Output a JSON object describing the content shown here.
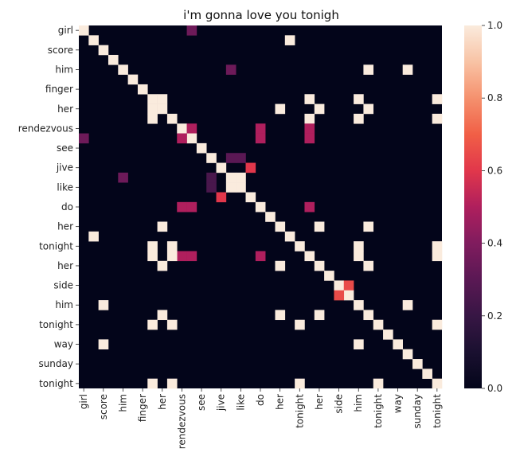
{
  "chart_data": {
    "type": "heatmap",
    "title": "i'm gonna love you tonigh",
    "tokens": [
      "girl",
      "",
      "score",
      "",
      "him",
      "",
      "finger",
      "",
      "her",
      "",
      "rendezvous",
      "",
      "see",
      "",
      "jive",
      "",
      "like",
      "",
      "do",
      "",
      "her",
      "",
      "tonight",
      "",
      "her",
      "",
      "side",
      "",
      "him",
      "",
      "tonight",
      "",
      "way",
      "",
      "sunday",
      "",
      "tonight"
    ],
    "x_tick_labels": [
      "girl",
      "score",
      "him",
      "finger",
      "her",
      "rendezvous",
      "see",
      "jive",
      "like",
      "do",
      "her",
      "tonight",
      "her",
      "side",
      "him",
      "tonight",
      "way",
      "sunday",
      "tonight"
    ],
    "y_tick_labels": [
      "girl",
      "score",
      "him",
      "finger",
      "her",
      "rendezvous",
      "see",
      "jive",
      "like",
      "do",
      "her",
      "tonight",
      "her",
      "side",
      "him",
      "tonight",
      "way",
      "sunday",
      "tonight"
    ],
    "colorbar": {
      "min": 0.0,
      "max": 1.0,
      "ticks": [
        "0.0",
        "0.2",
        "0.4",
        "0.6",
        "0.8",
        "1.0"
      ],
      "colormap": "rocket"
    },
    "cells": [
      [
        0,
        0,
        1.0
      ],
      [
        0,
        11,
        0.35
      ],
      [
        1,
        1,
        1.0
      ],
      [
        1,
        21,
        1.0
      ],
      [
        2,
        2,
        1.0
      ],
      [
        3,
        3,
        1.0
      ],
      [
        4,
        4,
        1.0
      ],
      [
        4,
        29,
        1.0
      ],
      [
        4,
        15,
        0.35
      ],
      [
        4,
        33,
        1.0
      ],
      [
        5,
        5,
        1.0
      ],
      [
        6,
        6,
        1.0
      ],
      [
        7,
        7,
        1.0
      ],
      [
        7,
        8,
        1.0
      ],
      [
        7,
        23,
        1.0
      ],
      [
        7,
        28,
        1.0
      ],
      [
        7,
        36,
        1.0
      ],
      [
        8,
        8,
        1.0
      ],
      [
        8,
        7,
        1.0
      ],
      [
        8,
        20,
        1.0
      ],
      [
        8,
        24,
        1.0
      ],
      [
        8,
        29,
        1.0
      ],
      [
        9,
        9,
        1.0
      ],
      [
        9,
        7,
        1.0
      ],
      [
        9,
        23,
        1.0
      ],
      [
        9,
        28,
        1.0
      ],
      [
        9,
        36,
        1.0
      ],
      [
        10,
        10,
        1.0
      ],
      [
        10,
        11,
        0.5
      ],
      [
        10,
        18,
        0.5
      ],
      [
        10,
        23,
        0.5
      ],
      [
        11,
        11,
        1.0
      ],
      [
        11,
        10,
        0.5
      ],
      [
        11,
        18,
        0.5
      ],
      [
        11,
        23,
        0.5
      ],
      [
        11,
        0,
        0.35
      ],
      [
        12,
        12,
        1.0
      ],
      [
        13,
        13,
        1.0
      ],
      [
        13,
        15,
        0.3
      ],
      [
        13,
        16,
        0.3
      ],
      [
        14,
        14,
        1.0
      ],
      [
        14,
        17,
        0.6
      ],
      [
        15,
        15,
        1.0
      ],
      [
        15,
        16,
        1.0
      ],
      [
        15,
        13,
        0.25
      ],
      [
        15,
        4,
        0.35
      ],
      [
        16,
        16,
        1.0
      ],
      [
        16,
        15,
        1.0
      ],
      [
        16,
        13,
        0.25
      ],
      [
        17,
        17,
        1.0
      ],
      [
        17,
        14,
        0.6
      ],
      [
        18,
        18,
        1.0
      ],
      [
        18,
        10,
        0.5
      ],
      [
        18,
        11,
        0.5
      ],
      [
        18,
        23,
        0.5
      ],
      [
        19,
        19,
        1.0
      ],
      [
        20,
        20,
        1.0
      ],
      [
        20,
        8,
        1.0
      ],
      [
        20,
        24,
        1.0
      ],
      [
        20,
        29,
        1.0
      ],
      [
        21,
        21,
        1.0
      ],
      [
        21,
        1,
        1.0
      ],
      [
        22,
        22,
        1.0
      ],
      [
        22,
        7,
        1.0
      ],
      [
        22,
        9,
        1.0
      ],
      [
        22,
        28,
        1.0
      ],
      [
        22,
        36,
        1.0
      ],
      [
        23,
        23,
        1.0
      ],
      [
        23,
        10,
        0.5
      ],
      [
        23,
        11,
        0.5
      ],
      [
        23,
        18,
        0.5
      ],
      [
        23,
        7,
        1.0
      ],
      [
        23,
        9,
        1.0
      ],
      [
        23,
        28,
        1.0
      ],
      [
        23,
        36,
        1.0
      ],
      [
        24,
        24,
        1.0
      ],
      [
        24,
        8,
        1.0
      ],
      [
        24,
        20,
        1.0
      ],
      [
        24,
        29,
        1.0
      ],
      [
        25,
        25,
        1.0
      ],
      [
        26,
        26,
        1.0
      ],
      [
        26,
        27,
        0.65
      ],
      [
        27,
        27,
        1.0
      ],
      [
        27,
        26,
        0.65
      ],
      [
        28,
        28,
        1.0
      ],
      [
        28,
        2,
        1.0
      ],
      [
        28,
        33,
        1.0
      ],
      [
        29,
        29,
        1.0
      ],
      [
        29,
        8,
        1.0
      ],
      [
        29,
        20,
        1.0
      ],
      [
        29,
        24,
        1.0
      ],
      [
        30,
        30,
        1.0
      ],
      [
        30,
        7,
        1.0
      ],
      [
        30,
        9,
        1.0
      ],
      [
        30,
        22,
        1.0
      ],
      [
        30,
        36,
        1.0
      ],
      [
        31,
        31,
        1.0
      ],
      [
        32,
        32,
        1.0
      ],
      [
        32,
        2,
        1.0
      ],
      [
        32,
        28,
        1.0
      ],
      [
        33,
        33,
        1.0
      ],
      [
        34,
        34,
        1.0
      ],
      [
        35,
        35,
        1.0
      ],
      [
        36,
        36,
        1.0
      ],
      [
        36,
        7,
        1.0
      ],
      [
        36,
        9,
        1.0
      ],
      [
        36,
        22,
        1.0
      ],
      [
        36,
        30,
        1.0
      ]
    ]
  },
  "colors": {
    "low": "#03051a",
    "high": "#faebdd"
  }
}
